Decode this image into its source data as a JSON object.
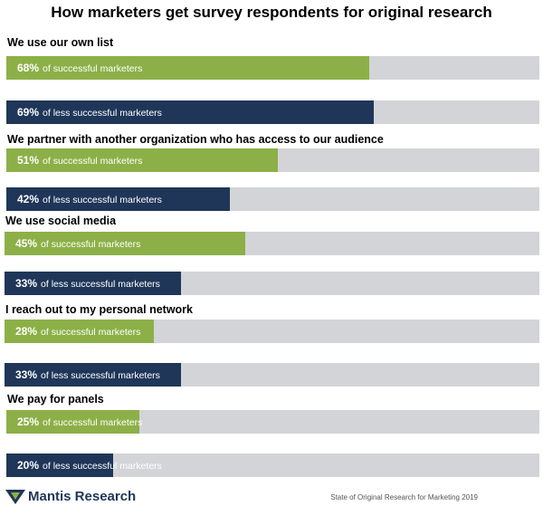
{
  "chart_data": {
    "type": "bar",
    "orientation": "horizontal",
    "title": "How marketers get survey respondents for original research",
    "xlim": [
      0,
      100
    ],
    "categories": [
      "We use our own list",
      "We partner with another organization who has access to our audience",
      "We use social media",
      "I reach out to my personal network",
      "We pay for panels"
    ],
    "series": [
      {
        "name": "successful marketers",
        "label": "of successful marketers",
        "color": "#8cb047",
        "values": [
          68,
          51,
          45,
          28,
          25
        ]
      },
      {
        "name": "less successful marketers",
        "label": "of less successful marketers",
        "color": "#1f3659",
        "values": [
          69,
          42,
          33,
          33,
          20
        ]
      }
    ],
    "track_color": "#d3d4d8"
  },
  "footer": {
    "logo_text": "Mantis Research",
    "logo_icon": "mantis-logo-icon",
    "source": "State of Original Research for Marketing 2019"
  }
}
